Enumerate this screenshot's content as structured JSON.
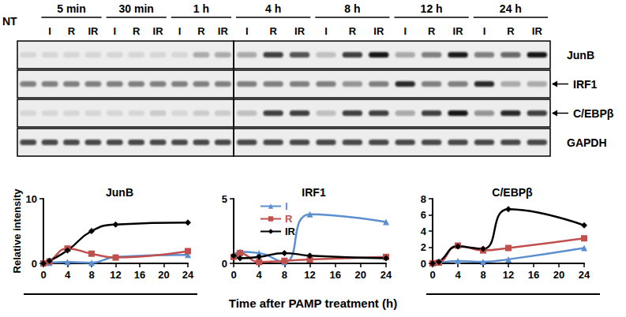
{
  "blot": {
    "control_lane": "NT",
    "panels": [
      [
        {
          "label": "5 min",
          "lanes": [
            "I",
            "R",
            "IR"
          ]
        },
        {
          "label": "30 min",
          "lanes": [
            "I",
            "R",
            "IR"
          ]
        },
        {
          "label": "1 h",
          "lanes": [
            "I",
            "R",
            "IR"
          ]
        }
      ],
      [
        {
          "label": "4 h",
          "lanes": [
            "I",
            "R",
            "IR"
          ]
        },
        {
          "label": "8 h",
          "lanes": [
            "I",
            "R",
            "IR"
          ]
        },
        {
          "label": "12 h",
          "lanes": [
            "I",
            "R",
            "IR"
          ]
        },
        {
          "label": "24 h",
          "lanes": [
            "I",
            "R",
            "IR"
          ]
        }
      ]
    ],
    "rows": [
      {
        "label": "JunB",
        "arrow": false,
        "intensity": [
          0.1,
          0.1,
          0.1,
          0.1,
          0.1,
          0.1,
          0.1,
          0.1,
          0.3,
          0.3,
          0.3,
          0.8,
          0.7,
          0.2,
          0.8,
          1.0,
          0.3,
          0.5,
          0.95,
          0.5,
          0.6,
          1.0
        ]
      },
      {
        "label": "IRF1",
        "arrow": true,
        "intensity": [
          0.5,
          0.5,
          0.5,
          0.5,
          0.5,
          0.5,
          0.5,
          0.5,
          0.5,
          0.5,
          0.5,
          0.5,
          0.5,
          0.5,
          0.4,
          0.5,
          0.9,
          0.5,
          0.5,
          0.9,
          0.3,
          0.3
        ]
      },
      {
        "label": "C/EBPβ",
        "arrow": true,
        "intensity": [
          0.1,
          0.1,
          0.1,
          0.1,
          0.1,
          0.1,
          0.15,
          0.1,
          0.15,
          0.15,
          0.2,
          0.8,
          0.8,
          0.2,
          0.8,
          0.8,
          0.3,
          0.8,
          1.0,
          0.4,
          0.9,
          0.8
        ]
      },
      {
        "label": "GAPDH",
        "arrow": false,
        "intensity": [
          0.75,
          0.75,
          0.75,
          0.75,
          0.75,
          0.75,
          0.75,
          0.75,
          0.75,
          0.75,
          0.75,
          0.75,
          0.75,
          0.75,
          0.75,
          0.75,
          0.75,
          0.75,
          0.75,
          0.75,
          0.75,
          0.75
        ]
      }
    ]
  },
  "x_label": "Time after PAMP treatment (h)",
  "chart_data": [
    {
      "type": "line",
      "title": "JunB",
      "y_label": "Relative intensity",
      "grid": false,
      "x": [
        0,
        1,
        4,
        8,
        12,
        24
      ],
      "xlim": [
        0,
        24
      ],
      "xticks": [
        0,
        4,
        8,
        12,
        16,
        20,
        24
      ],
      "ylim": [
        0,
        10
      ],
      "yticks": [
        0,
        10
      ],
      "series": [
        {
          "name": "I",
          "color": "#5b8fd0",
          "marker": "triangle",
          "values": [
            0,
            0.1,
            0.2,
            0.1,
            1.0,
            1.3
          ]
        },
        {
          "name": "R",
          "color": "#c0504d",
          "marker": "square",
          "values": [
            0,
            0.3,
            2.3,
            1.5,
            0.9,
            1.9
          ]
        },
        {
          "name": "IR",
          "color": "#000000",
          "marker": "diamond",
          "values": [
            0,
            0.4,
            2.0,
            5.0,
            6.0,
            6.3
          ]
        }
      ]
    },
    {
      "type": "line",
      "title": "IRF1",
      "grid": false,
      "legend": "upper left",
      "x": [
        0,
        1,
        4,
        8,
        12,
        24
      ],
      "xlim": [
        0,
        24
      ],
      "xticks": [
        0,
        4,
        8,
        12,
        16,
        20,
        24
      ],
      "ylim": [
        0,
        5
      ],
      "yticks": [
        0,
        5
      ],
      "series": [
        {
          "name": "I",
          "color": "#5b8fd0",
          "marker": "triangle",
          "values": [
            0.6,
            0.9,
            0.8,
            0.1,
            3.8,
            3.2
          ]
        },
        {
          "name": "R",
          "color": "#c0504d",
          "marker": "square",
          "values": [
            0.5,
            0.8,
            0.1,
            0.2,
            0.3,
            0.5
          ]
        },
        {
          "name": "IR",
          "color": "#000000",
          "marker": "diamond",
          "values": [
            0.6,
            0.4,
            0.5,
            0.8,
            0.6,
            0.4
          ]
        }
      ]
    },
    {
      "type": "line",
      "title": "C/EBPβ",
      "grid": false,
      "x": [
        0,
        1,
        4,
        8,
        12,
        24
      ],
      "xlim": [
        0,
        24
      ],
      "xticks": [
        0,
        4,
        8,
        12,
        16,
        20,
        24
      ],
      "ylim": [
        0,
        8
      ],
      "yticks": [
        0,
        2,
        4,
        6,
        8
      ],
      "series": [
        {
          "name": "I",
          "color": "#5b8fd0",
          "marker": "triangle",
          "values": [
            0,
            0.1,
            0.3,
            0.2,
            0.5,
            1.9
          ]
        },
        {
          "name": "R",
          "color": "#c0504d",
          "marker": "square",
          "values": [
            0,
            0.1,
            2.2,
            1.6,
            1.9,
            3.1
          ]
        },
        {
          "name": "IR",
          "color": "#000000",
          "marker": "diamond",
          "values": [
            0,
            0.2,
            2.1,
            1.8,
            6.7,
            4.7
          ]
        }
      ]
    }
  ]
}
